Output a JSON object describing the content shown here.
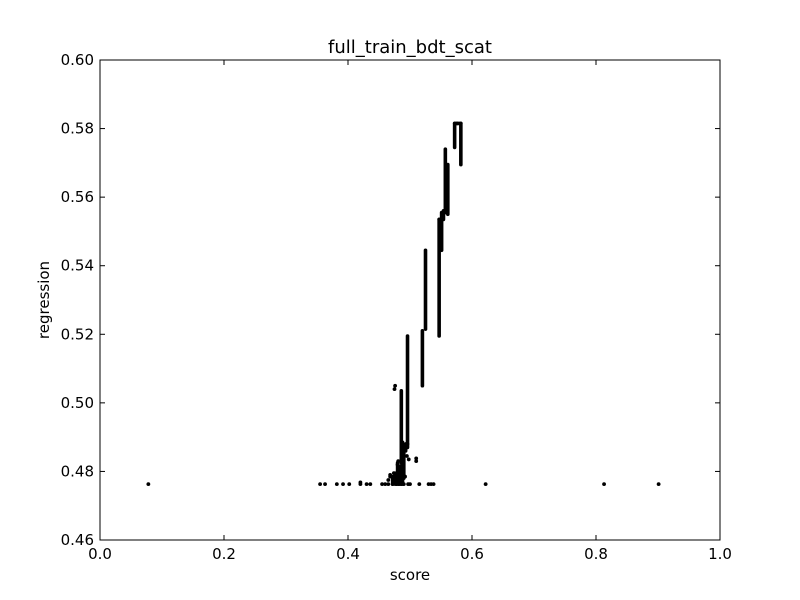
{
  "chart_data": {
    "type": "scatter",
    "title": "full_train_bdt_scat",
    "xlabel": "score",
    "ylabel": "regression",
    "xlim": [
      0.0,
      1.0
    ],
    "ylim": [
      0.46,
      0.6
    ],
    "xticks": [
      "0.0",
      "0.2",
      "0.4",
      "0.6",
      "0.8",
      "1.0"
    ],
    "yticks": [
      "0.46",
      "0.48",
      "0.50",
      "0.52",
      "0.54",
      "0.56",
      "0.58",
      "0.60"
    ],
    "grid": false,
    "marker_color": "#000000",
    "points": [
      [
        0.078,
        0.4763
      ],
      [
        0.355,
        0.4763
      ],
      [
        0.363,
        0.4763
      ],
      [
        0.382,
        0.4763
      ],
      [
        0.392,
        0.4763
      ],
      [
        0.402,
        0.4763
      ],
      [
        0.42,
        0.4763
      ],
      [
        0.42,
        0.4768
      ],
      [
        0.43,
        0.4763
      ],
      [
        0.436,
        0.4763
      ],
      [
        0.455,
        0.4763
      ],
      [
        0.46,
        0.4763
      ],
      [
        0.465,
        0.4763
      ],
      [
        0.465,
        0.4775
      ],
      [
        0.468,
        0.4785
      ],
      [
        0.468,
        0.479
      ],
      [
        0.472,
        0.4763
      ],
      [
        0.474,
        0.4795
      ],
      [
        0.475,
        0.504
      ],
      [
        0.476,
        0.505
      ],
      [
        0.477,
        0.479
      ],
      [
        0.478,
        0.4763
      ],
      [
        0.48,
        0.482
      ],
      [
        0.481,
        0.483
      ],
      [
        0.482,
        0.4763
      ],
      [
        0.484,
        0.481
      ],
      [
        0.486,
        0.4763
      ],
      [
        0.487,
        0.4785
      ],
      [
        0.49,
        0.4763
      ],
      [
        0.492,
        0.4785
      ],
      [
        0.495,
        0.4845
      ],
      [
        0.497,
        0.4763
      ],
      [
        0.498,
        0.4835
      ],
      [
        0.5,
        0.4763
      ],
      [
        0.51,
        0.483
      ],
      [
        0.51,
        0.4838
      ],
      [
        0.515,
        0.4763
      ],
      [
        0.53,
        0.4763
      ],
      [
        0.534,
        0.4763
      ],
      [
        0.538,
        0.4763
      ],
      [
        0.622,
        0.4763
      ],
      [
        0.813,
        0.4763
      ],
      [
        0.901,
        0.4763
      ]
    ],
    "segments": [
      [
        [
          0.472,
          0.4763
        ],
        [
          0.472,
          0.4785
        ]
      ],
      [
        [
          0.476,
          0.4763
        ],
        [
          0.476,
          0.4795
        ]
      ],
      [
        [
          0.48,
          0.4763
        ],
        [
          0.48,
          0.4825
        ]
      ],
      [
        [
          0.484,
          0.4763
        ],
        [
          0.484,
          0.4815
        ]
      ],
      [
        [
          0.486,
          0.4825
        ],
        [
          0.486,
          0.5035
        ]
      ],
      [
        [
          0.488,
          0.4763
        ],
        [
          0.488,
          0.4885
        ]
      ],
      [
        [
          0.49,
          0.478
        ],
        [
          0.49,
          0.4875
        ]
      ],
      [
        [
          0.493,
          0.486
        ],
        [
          0.493,
          0.488
        ]
      ],
      [
        [
          0.493,
          0.488
        ],
        [
          0.496,
          0.488
        ]
      ],
      [
        [
          0.496,
          0.487
        ],
        [
          0.496,
          0.5195
        ]
      ],
      [
        [
          0.52,
          0.505
        ],
        [
          0.52,
          0.521
        ]
      ],
      [
        [
          0.525,
          0.5215
        ],
        [
          0.525,
          0.5445
        ]
      ],
      [
        [
          0.547,
          0.5195
        ],
        [
          0.547,
          0.5535
        ]
      ],
      [
        [
          0.547,
          0.5535
        ],
        [
          0.551,
          0.5535
        ]
      ],
      [
        [
          0.551,
          0.5445
        ],
        [
          0.551,
          0.5555
        ]
      ],
      [
        [
          0.554,
          0.5535
        ],
        [
          0.554,
          0.556
        ]
      ],
      [
        [
          0.557,
          0.5555
        ],
        [
          0.557,
          0.574
        ]
      ],
      [
        [
          0.561,
          0.555
        ],
        [
          0.561,
          0.5695
        ]
      ],
      [
        [
          0.572,
          0.5745
        ],
        [
          0.572,
          0.5815
        ]
      ],
      [
        [
          0.572,
          0.5815
        ],
        [
          0.582,
          0.5815
        ]
      ],
      [
        [
          0.576,
          0.5815
        ],
        [
          0.576,
          0.5815
        ]
      ],
      [
        [
          0.582,
          0.5695
        ],
        [
          0.582,
          0.5815
        ]
      ]
    ]
  }
}
